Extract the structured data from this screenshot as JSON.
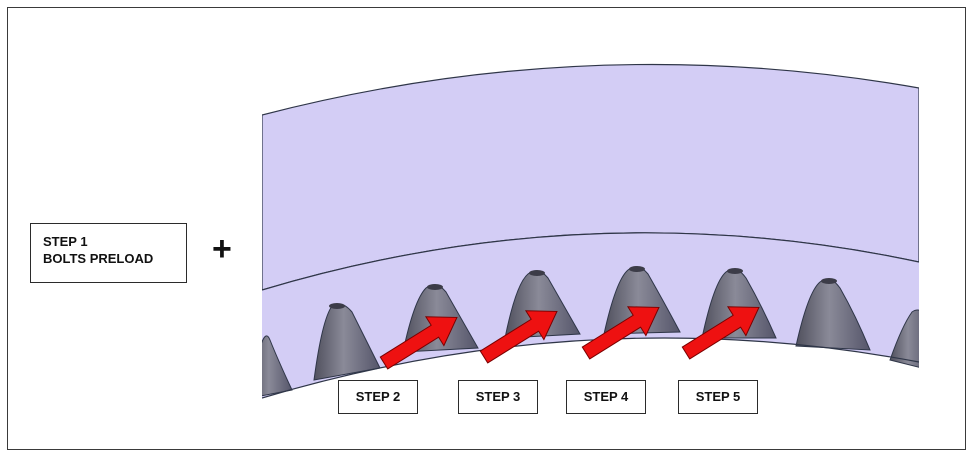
{
  "colors": {
    "ring_fill": "#d3cdf5",
    "ring_stroke": "#2f3648",
    "tooth_fill": "#6e6e7c",
    "tooth_dark": "#3c3c48",
    "arrow_fill": "#ee1111",
    "arrow_stroke": "#7a0000"
  },
  "icons": [
    "plus-icon",
    "red-arrow-icon"
  ],
  "step1": {
    "line1": "STEP 1",
    "line2": "BOLTS PRELOAD"
  },
  "plus_symbol": "+",
  "steps": [
    {
      "label": "STEP 2"
    },
    {
      "label": "STEP 3"
    },
    {
      "label": "STEP 4"
    },
    {
      "label": "STEP 5"
    }
  ]
}
